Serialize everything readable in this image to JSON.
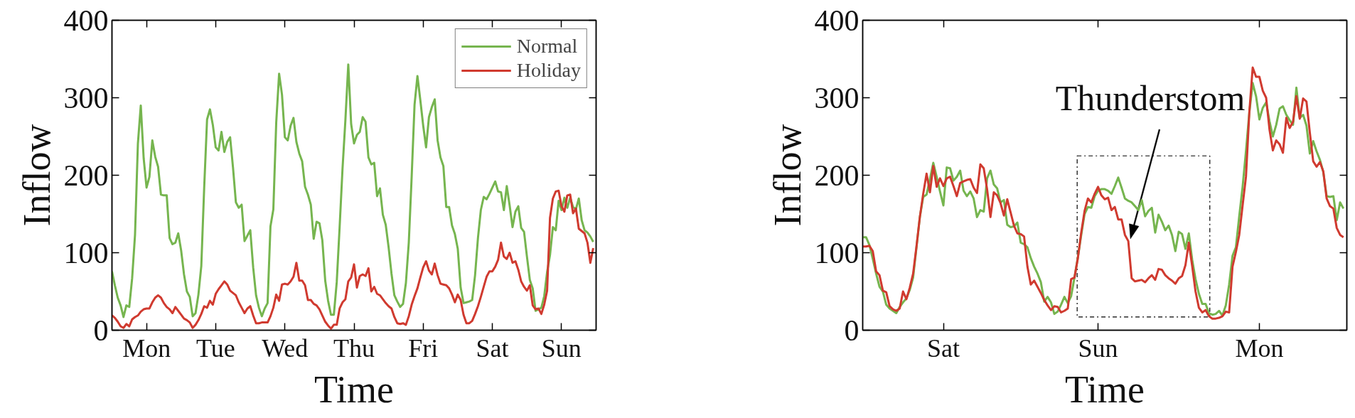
{
  "chart_data": [
    {
      "type": "line",
      "xlabel": "Time",
      "ylabel": "Inflow",
      "legend": "top right",
      "ylim": [
        0,
        400
      ],
      "yticks": [
        0,
        100,
        200,
        300,
        400
      ],
      "categories": [
        null,
        null,
        null,
        null,
        null,
        null,
        null,
        null,
        null,
        null,
        null,
        null,
        "Mon",
        null,
        null,
        null,
        null,
        null,
        null,
        null,
        null,
        null,
        null,
        null,
        null,
        null,
        null,
        null,
        null,
        null,
        null,
        null,
        null,
        null,
        null,
        null,
        "Tue",
        null,
        null,
        null,
        null,
        null,
        null,
        null,
        null,
        null,
        null,
        null,
        null,
        null,
        null,
        null,
        null,
        null,
        null,
        null,
        null,
        null,
        null,
        null,
        "Wed",
        null,
        null,
        null,
        null,
        null,
        null,
        null,
        null,
        null,
        null,
        null,
        null,
        null,
        null,
        null,
        null,
        null,
        null,
        null,
        null,
        null,
        null,
        null,
        "Thu",
        null,
        null,
        null,
        null,
        null,
        null,
        null,
        null,
        null,
        null,
        null,
        null,
        null,
        null,
        null,
        null,
        null,
        null,
        null,
        null,
        null,
        null,
        null,
        "Fri",
        null,
        null,
        null,
        null,
        null,
        null,
        null,
        null,
        null,
        null,
        null,
        null,
        null,
        null,
        null,
        null,
        null,
        null,
        null,
        null,
        null,
        null,
        null,
        "Sat",
        null,
        null,
        null,
        null,
        null,
        null,
        null,
        null,
        null,
        null,
        null,
        null,
        null,
        null,
        null,
        null,
        null,
        null,
        null,
        null,
        null,
        null,
        null,
        "Sun",
        null,
        null,
        null,
        null,
        null,
        null,
        null,
        null,
        null,
        null,
        null
      ],
      "series": [
        {
          "name": "Normal",
          "color": "#76b54f",
          "values": [
            76,
            58,
            42,
            32,
            17,
            32,
            30,
            67,
            123,
            241,
            290,
            222,
            184,
            198,
            245,
            224,
            211,
            175,
            174,
            174,
            119,
            111,
            113,
            125,
            103,
            72,
            50,
            43,
            18,
            22,
            46,
            83,
            184,
            272,
            285,
            265,
            236,
            232,
            256,
            230,
            243,
            249,
            210,
            165,
            158,
            162,
            115,
            122,
            129,
            81,
            45,
            29,
            18,
            28,
            35,
            134,
            156,
            268,
            331,
            304,
            249,
            245,
            264,
            274,
            243,
            228,
            218,
            185,
            175,
            162,
            118,
            140,
            138,
            116,
            64,
            38,
            20,
            20,
            62,
            133,
            208,
            271,
            343,
            266,
            241,
            252,
            256,
            275,
            269,
            223,
            214,
            216,
            173,
            183,
            149,
            136,
            107,
            73,
            45,
            37,
            30,
            34,
            61,
            113,
            198,
            291,
            328,
            297,
            264,
            236,
            275,
            288,
            298,
            245,
            223,
            212,
            159,
            159,
            135,
            124,
            105,
            55,
            35,
            36,
            37,
            39,
            71,
            119,
            155,
            172,
            169,
            176,
            184,
            192,
            179,
            178,
            155,
            186,
            161,
            133,
            153,
            160,
            132,
            127,
            95,
            65,
            54,
            25,
            27,
            29,
            44,
            75,
            97,
            133,
            129,
            167,
            155,
            171,
            158,
            171,
            159,
            156,
            170,
            142,
            129,
            126,
            121,
            114
          ]
        },
        {
          "name": "Holiday",
          "color": "#d03a2f",
          "values": [
            19,
            16,
            11,
            5,
            3,
            8,
            5,
            14,
            17,
            19,
            24,
            27,
            28,
            28,
            36,
            42,
            45,
            42,
            35,
            30,
            27,
            22,
            30,
            25,
            20,
            15,
            13,
            10,
            3,
            7,
            13,
            21,
            31,
            29,
            38,
            33,
            47,
            53,
            58,
            63,
            59,
            51,
            48,
            45,
            36,
            29,
            22,
            28,
            31,
            19,
            9,
            9,
            10,
            10,
            10,
            18,
            29,
            46,
            38,
            59,
            60,
            59,
            63,
            69,
            87,
            64,
            64,
            58,
            39,
            39,
            34,
            32,
            27,
            19,
            11,
            6,
            2,
            7,
            7,
            28,
            36,
            40,
            63,
            68,
            85,
            55,
            70,
            72,
            70,
            80,
            50,
            56,
            47,
            45,
            40,
            35,
            31,
            28,
            17,
            9,
            8,
            9,
            7,
            18,
            33,
            44,
            54,
            68,
            81,
            89,
            77,
            72,
            86,
            71,
            60,
            59,
            58,
            54,
            46,
            36,
            46,
            39,
            20,
            9,
            9,
            12,
            21,
            31,
            43,
            56,
            69,
            76,
            76,
            82,
            91,
            113,
            95,
            92,
            100,
            87,
            89,
            78,
            63,
            56,
            51,
            58,
            32,
            27,
            28,
            21,
            33,
            51,
            145,
            170,
            179,
            180,
            160,
            153,
            174,
            175,
            151,
            157,
            131,
            128,
            125,
            113,
            87,
            106
          ]
        }
      ]
    },
    {
      "type": "line",
      "xlabel": "Time",
      "ylabel": "Inflow",
      "ylim": [
        0,
        400
      ],
      "yticks": [
        0,
        100,
        200,
        300,
        400
      ],
      "annotations": [
        "Thunderstom"
      ],
      "categories": [
        null,
        null,
        null,
        null,
        null,
        null,
        null,
        null,
        null,
        null,
        null,
        null,
        null,
        null,
        null,
        null,
        null,
        null,
        null,
        null,
        null,
        null,
        null,
        null,
        "Sat",
        null,
        null,
        null,
        null,
        null,
        null,
        null,
        null,
        null,
        null,
        null,
        null,
        null,
        null,
        null,
        null,
        null,
        null,
        null,
        null,
        null,
        null,
        null,
        null,
        null,
        null,
        null,
        null,
        null,
        null,
        null,
        null,
        null,
        null,
        null,
        null,
        null,
        null,
        null,
        null,
        null,
        null,
        null,
        null,
        null,
        "Sun",
        null,
        null,
        null,
        null,
        null,
        null,
        null,
        null,
        null,
        null,
        null,
        null,
        null,
        null,
        null,
        null,
        null,
        null,
        null,
        null,
        null,
        null,
        null,
        null,
        null,
        null,
        null,
        null,
        null,
        null,
        null,
        null,
        null,
        null,
        null,
        null,
        null,
        null,
        null,
        null,
        null,
        null,
        null,
        null,
        null,
        null,
        null,
        "Mon",
        null,
        null,
        null,
        null,
        null,
        null,
        null,
        null,
        null,
        null,
        null,
        null,
        null,
        null,
        null,
        null,
        null,
        null,
        null,
        null,
        null,
        null,
        null,
        null,
        null
      ],
      "series": [
        {
          "color": "#76b54f",
          "values": [
            120,
            120,
            110,
            92,
            73,
            56,
            50,
            33,
            28,
            25,
            22,
            30,
            36,
            41,
            52,
            68,
            107,
            146,
            172,
            175,
            195,
            216,
            198,
            179,
            161,
            210,
            209,
            193,
            198,
            206,
            180,
            173,
            179,
            170,
            146,
            155,
            153,
            196,
            206,
            188,
            183,
            165,
            168,
            136,
            133,
            134,
            139,
            113,
            111,
            107,
            93,
            82,
            73,
            62,
            37,
            43,
            36,
            21,
            24,
            33,
            43,
            35,
            44,
            68,
            94,
            123,
            150,
            159,
            158,
            173,
            180,
            182,
            182,
            180,
            176,
            186,
            197,
            184,
            170,
            167,
            165,
            160,
            155,
            168,
            147,
            154,
            158,
            126,
            149,
            140,
            129,
            135,
            123,
            102,
            127,
            124,
            105,
            125,
            91,
            66,
            47,
            34,
            34,
            22,
            20,
            21,
            25,
            19,
            32,
            59,
            96,
            107,
            147,
            185,
            231,
            281,
            319,
            302,
            272,
            287,
            294,
            270,
            250,
            265,
            286,
            289,
            278,
            271,
            265,
            313,
            274,
            278,
            264,
            228,
            244,
            231,
            220,
            204,
            173,
            172,
            173,
            142,
            165,
            157
          ]
        },
        {
          "color": "#d03a2f",
          "values": [
            108,
            108,
            109,
            102,
            76,
            71,
            51,
            49,
            31,
            27,
            25,
            28,
            50,
            40,
            55,
            73,
            108,
            146,
            176,
            202,
            178,
            212,
            185,
            196,
            186,
            196,
            198,
            186,
            173,
            190,
            192,
            194,
            195,
            184,
            177,
            214,
            209,
            182,
            146,
            178,
            174,
            164,
            148,
            169,
            152,
            135,
            125,
            124,
            121,
            82,
            59,
            64,
            56,
            48,
            39,
            32,
            26,
            31,
            30,
            23,
            25,
            28,
            66,
            68,
            93,
            126,
            154,
            170,
            165,
            176,
            185,
            174,
            169,
            171,
            155,
            159,
            143,
            143,
            123,
            115,
            67,
            63,
            64,
            65,
            62,
            67,
            71,
            65,
            79,
            78,
            71,
            67,
            64,
            60,
            67,
            70,
            84,
            113,
            83,
            50,
            29,
            23,
            26,
            18,
            15,
            15,
            16,
            18,
            24,
            23,
            82,
            101,
            123,
            161,
            198,
            281,
            339,
            327,
            327,
            309,
            300,
            259,
            232,
            245,
            240,
            229,
            274,
            261,
            269,
            302,
            273,
            299,
            295,
            255,
            218,
            211,
            217,
            205,
            170,
            160,
            157,
            132,
            123,
            120
          ]
        }
      ]
    }
  ]
}
